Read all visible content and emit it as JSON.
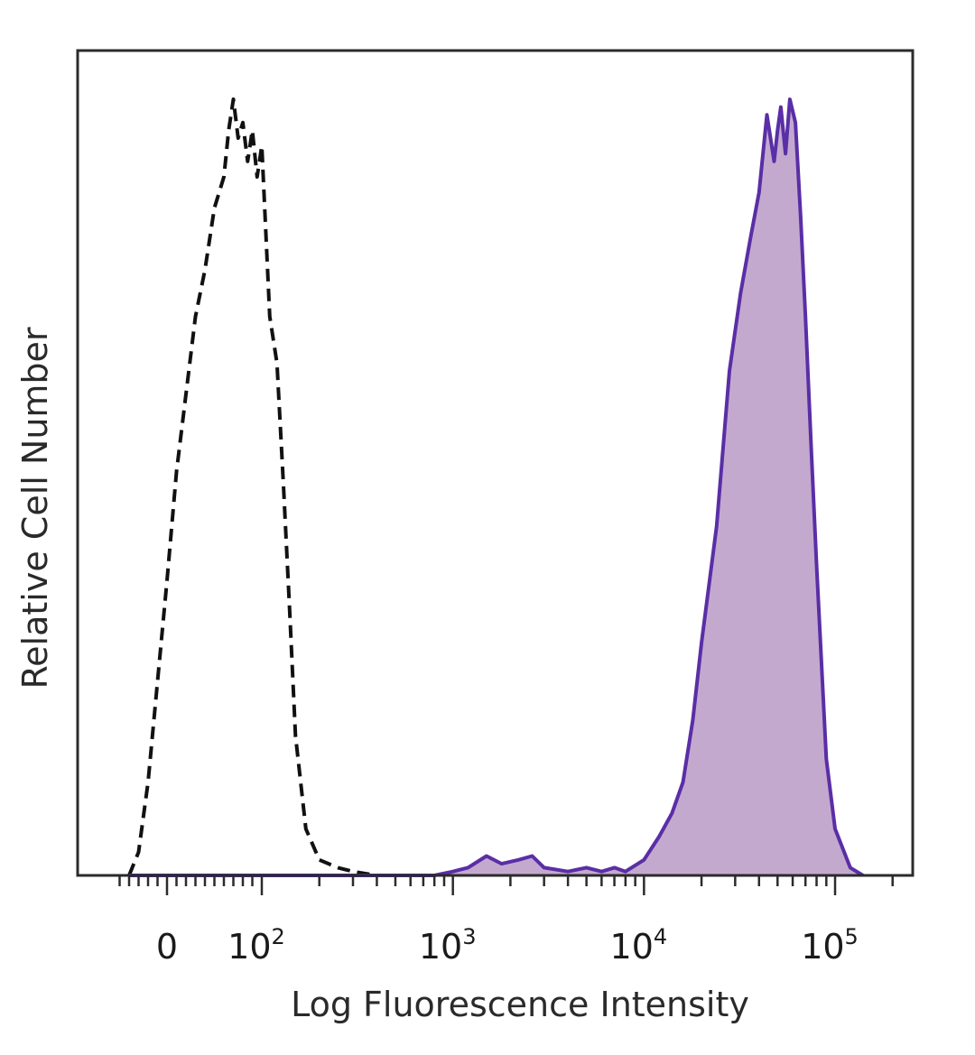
{
  "chart_data": {
    "type": "area",
    "xlabel": "Log Fluorescence Intensity",
    "ylabel": "Relative Cell Number",
    "x_scale": "biexponential (log above 10^2)",
    "grid": false,
    "legend": "none",
    "x_tick_labels": [
      {
        "value": 0,
        "base": "0",
        "exp": ""
      },
      {
        "value": 100,
        "base": "10",
        "exp": "2"
      },
      {
        "value": 1000,
        "base": "10",
        "exp": "3"
      },
      {
        "value": 10000,
        "base": "10",
        "exp": "4"
      },
      {
        "value": 100000,
        "base": "10",
        "exp": "5"
      }
    ],
    "series": [
      {
        "style": "dashed",
        "color": "#111111",
        "fill": "none",
        "x": [
          -40,
          -30,
          -20,
          -10,
          0,
          10,
          20,
          30,
          40,
          50,
          55,
          60,
          65,
          70,
          75,
          80,
          85,
          90,
          95,
          100,
          110,
          120,
          130,
          140,
          150,
          170,
          200,
          250,
          300,
          400
        ],
        "y": [
          0.0,
          0.03,
          0.12,
          0.25,
          0.38,
          0.52,
          0.62,
          0.72,
          0.78,
          0.86,
          0.88,
          0.9,
          0.96,
          1.0,
          0.95,
          0.97,
          0.92,
          0.96,
          0.9,
          0.94,
          0.72,
          0.66,
          0.5,
          0.34,
          0.18,
          0.06,
          0.02,
          0.01,
          0.005,
          0.0
        ]
      },
      {
        "style": "solid",
        "color": "#5a2ea6",
        "fill": "#c4a9cf",
        "x": [
          -40,
          0,
          100,
          400,
          800,
          1000,
          1200,
          1500,
          1800,
          2200,
          2600,
          3000,
          4000,
          5000,
          6000,
          7000,
          8000,
          10000,
          12000,
          14000,
          16000,
          18000,
          20000,
          24000,
          28000,
          32000,
          36000,
          40000,
          44000,
          48000,
          50000,
          52000,
          55000,
          58000,
          62000,
          66000,
          70000,
          75000,
          80000,
          90000,
          100000,
          120000,
          140000
        ],
        "y": [
          0.0,
          0.0,
          0.0,
          0.0,
          0.0,
          0.005,
          0.01,
          0.025,
          0.015,
          0.02,
          0.025,
          0.01,
          0.005,
          0.01,
          0.005,
          0.01,
          0.005,
          0.02,
          0.05,
          0.08,
          0.12,
          0.2,
          0.3,
          0.45,
          0.65,
          0.75,
          0.82,
          0.88,
          0.98,
          0.92,
          0.96,
          0.99,
          0.93,
          1.0,
          0.97,
          0.85,
          0.72,
          0.55,
          0.4,
          0.15,
          0.06,
          0.01,
          0.0
        ]
      }
    ]
  }
}
